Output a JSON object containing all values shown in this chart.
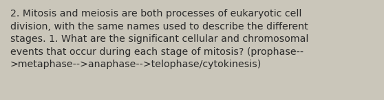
{
  "background_color": "#cac6ba",
  "text_color": "#2a2a2a",
  "font_size": 10.2,
  "font_family": "DejaVu Sans",
  "text": "2. Mitosis and meiosis are both processes of eukaryotic cell\ndivision, with the same names used to describe the different\nstages. 1. What are the significant cellular and chromosomal\nevents that occur during each stage of mitosis? (prophase--\n>metaphase-->anaphase-->telophase/cytokinesis)",
  "figsize": [
    5.58,
    1.46
  ],
  "dpi": 100
}
